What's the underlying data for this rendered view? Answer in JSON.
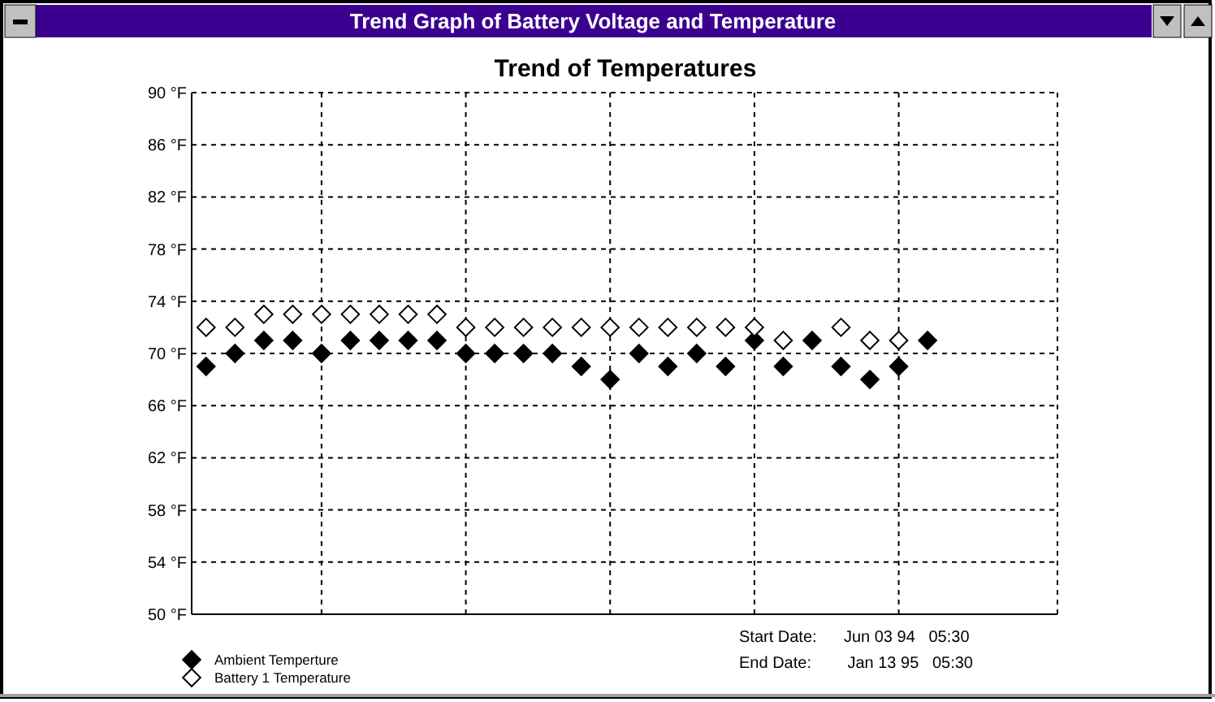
{
  "chart_data": {
    "type": "scatter",
    "title": "Trend Graph of Battery Voltage and Temperature",
    "subtitle": "Trend of Temperatures",
    "categories": [
      null,
      null,
      null,
      null,
      null,
      null,
      null,
      null,
      null,
      null,
      null,
      null,
      null,
      null,
      null,
      null,
      null,
      null,
      null,
      null,
      null,
      null,
      null,
      null,
      null,
      null,
      null,
      null,
      null,
      null
    ],
    "ylim": [
      50,
      90
    ],
    "yticks": [
      {
        "value": 50,
        "label": "50 °F"
      },
      {
        "value": 54,
        "label": "54 °F"
      },
      {
        "value": 58,
        "label": "58 °F"
      },
      {
        "value": 62,
        "label": "62 °F"
      },
      {
        "value": 66,
        "label": "66 °F"
      },
      {
        "value": 70,
        "label": "70 °F"
      },
      {
        "value": 74,
        "label": "74 °F"
      },
      {
        "value": 78,
        "label": "78 °F"
      },
      {
        "value": 82,
        "label": "82 °F"
      },
      {
        "value": 86,
        "label": "86 °F"
      },
      {
        "value": 90,
        "label": "90 °F"
      }
    ],
    "tick_labels": "y",
    "grid": true,
    "marker": "diamond",
    "legend": "bottom left",
    "series": [
      {
        "name": "Ambient Temperture",
        "color": "#000000",
        "values": [
          69,
          70,
          71,
          71,
          70,
          71,
          71,
          71,
          71,
          70,
          70,
          70,
          70,
          69,
          68,
          70,
          69,
          70,
          69,
          71,
          69,
          71,
          69,
          68,
          69,
          71,
          null,
          null,
          null,
          null
        ]
      },
      {
        "name": "Battery 1 Temperature",
        "color": "#ffffff",
        "values": [
          72,
          72,
          73,
          73,
          73,
          73,
          73,
          73,
          73,
          72,
          72,
          72,
          72,
          72,
          72,
          72,
          72,
          72,
          72,
          72,
          71,
          null,
          72,
          71,
          71,
          null,
          null,
          null,
          null,
          null
        ]
      }
    ],
    "annotations": [
      "Start Date:      Jun 03 94   05:30",
      "End Date:        Jan 13 95   05:30"
    ]
  }
}
